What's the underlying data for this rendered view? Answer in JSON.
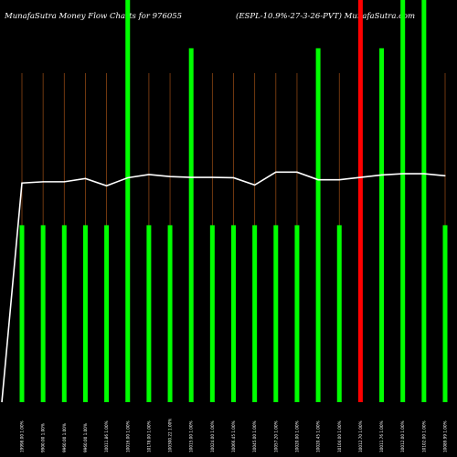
{
  "chart_data": {
    "type": "bar",
    "title_left": "MunafaSutra  Money Flow  Charts for 976055",
    "title_right": "(ESPL-10.9%-27-3-26-PVT) MunafaSutra.com",
    "ylim": [
      0,
      100
    ],
    "grid": false,
    "categories": [
      "19998.00 1.00%",
      "9900.00 1.00%",
      "9960.00 1.00%",
      "9960.00 1.00%",
      "10011.86 1.00%",
      "10016.00 1.00%",
      "10178.00 1.00%",
      "100300.22 1.00%",
      "10015.00 1.00%",
      "10024.00 1.00%",
      "10066.45 1.00%",
      "10045.00 1.00%",
      "10057.20 1.00%",
      "10020.00 1.00%",
      "10020.45 1.00%",
      "10104.00 1.00%",
      "10012.70 1.00%",
      "10011.76 1.00%",
      "10012.00 1.00%",
      "10102.00 1.00%",
      "10089.99 1.00%"
    ],
    "series": [
      {
        "role": "bars",
        "values": [
          44,
          44,
          44,
          44,
          44,
          100,
          44,
          44,
          88,
          44,
          44,
          44,
          44,
          44,
          88,
          44,
          100,
          88,
          100,
          100,
          44
        ],
        "colors": [
          "green",
          "green",
          "green",
          "green",
          "green",
          "green",
          "green",
          "green",
          "green",
          "green",
          "green",
          "green",
          "green",
          "green",
          "green",
          "green",
          "red",
          "green",
          "green",
          "green",
          "green"
        ]
      },
      {
        "role": "line",
        "values": [
          54.5,
          54.8,
          54.8,
          55.6,
          53.8,
          55.8,
          56.6,
          56.1,
          55.9,
          55.9,
          55.8,
          54.0,
          57.2,
          57.2,
          55.3,
          55.3,
          55.9,
          56.5,
          56.8,
          56.8,
          56.3
        ]
      }
    ],
    "line_start_value": 0,
    "colors": {
      "background": "#000000",
      "bar_green": "#00ff00",
      "bar_red": "#ff0000",
      "line": "#ffffff",
      "vline": "#8b4513",
      "text": "#ffffff"
    }
  }
}
